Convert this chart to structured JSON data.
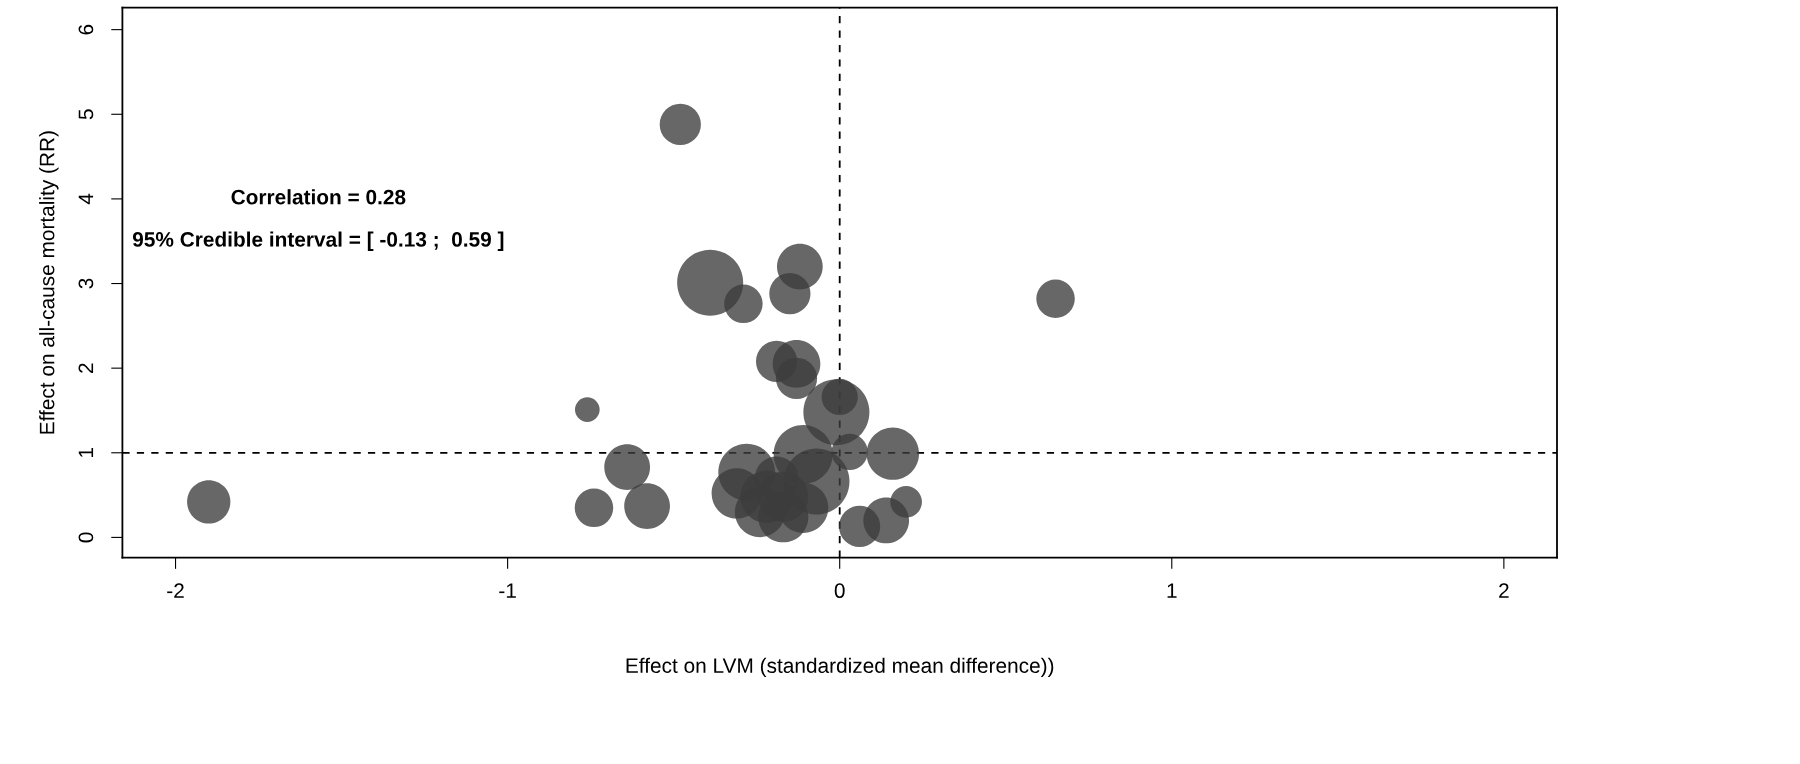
{
  "chart_data": {
    "type": "bubble",
    "xlabel": "Effect on LVM (standardized mean difference))",
    "ylabel": "Effect on all-cause mortality (RR)",
    "xlim": [
      -2.16,
      2.16
    ],
    "ylim": [
      -0.24,
      6.26
    ],
    "xticks": [
      -2,
      -1,
      0,
      1,
      2
    ],
    "yticks": [
      0,
      1,
      2,
      3,
      4,
      5,
      6
    ],
    "grid": false,
    "legend": false,
    "marker": "circle",
    "series": [
      {
        "color": "#3c3c3c",
        "x": [
          -0.48,
          -1.9,
          -0.76,
          -0.64,
          -0.74,
          -0.58,
          -0.39,
          -0.29,
          -0.12,
          -0.15,
          -0.19,
          -0.13,
          -0.13,
          -0.01,
          0.0,
          0.65,
          0.03,
          0.16,
          0.2,
          0.06,
          0.14,
          -0.11,
          -0.28,
          -0.31,
          -0.07,
          -0.22,
          -0.17,
          -0.24,
          -0.17,
          -0.11,
          -0.19
        ],
        "values": [
          4.88,
          0.42,
          1.51,
          0.83,
          0.35,
          0.37,
          3.01,
          2.76,
          3.2,
          2.88,
          2.08,
          2.05,
          1.88,
          1.48,
          1.66,
          2.82,
          1.01,
          0.99,
          0.42,
          0.13,
          0.2,
          0.98,
          0.77,
          0.52,
          0.66,
          0.48,
          0.48,
          0.3,
          0.24,
          0.35,
          0.7
        ],
        "sizes": [
          0.39,
          0.43,
          0.14,
          0.48,
          0.34,
          0.48,
          1.0,
          0.34,
          0.48,
          0.39,
          0.39,
          0.52,
          0.39,
          1.0,
          0.3,
          0.34,
          0.3,
          0.63,
          0.23,
          0.39,
          0.48,
          0.8,
          0.74,
          0.58,
          1.0,
          0.63,
          0.58,
          0.58,
          0.58,
          0.58,
          0.43
        ]
      }
    ],
    "ref_lines": [
      {
        "axis": "x",
        "value": 0,
        "line_style": "dashed",
        "color": "#000000"
      },
      {
        "axis": "y",
        "value": 1,
        "line_style": "dashed",
        "color": "#000000"
      }
    ],
    "annotations": [
      "Correlation = 0.28",
      "95% Credible interval = [ -0.13 ;  0.59 ]"
    ]
  }
}
